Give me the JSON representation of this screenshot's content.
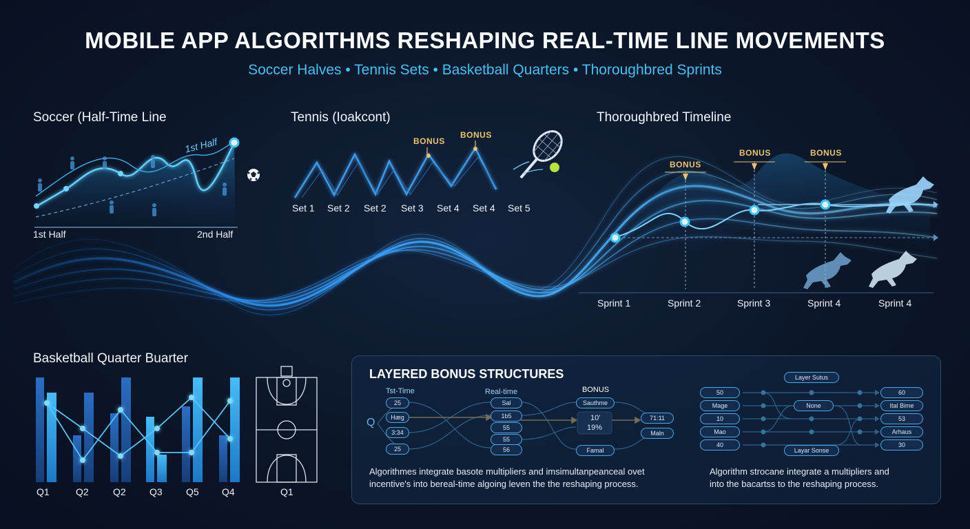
{
  "header": {
    "title": "MOBILE APP ALGORITHMS RESHAPING REAL-TIME LINE MOVEMENTS",
    "subtitle": "Soccer Halves • Tennis Sets • Basketball Quarters • Thoroughbred Sprints"
  },
  "soccer": {
    "title": "Soccer (Half-Time Line",
    "curve_label": "1st Half",
    "axis_start": "1st Half",
    "axis_end": "2nd Half",
    "icon": "soccer-ball-icon"
  },
  "tennis": {
    "title": "Tennis (Ioakcont)",
    "bonus_1": "BONUS",
    "bonus_2": "BONUS",
    "sets": [
      "Set 1",
      "Set 2",
      "Set 2",
      "Set 3",
      "Set 4",
      "Set 4",
      "Set 5"
    ],
    "icon": "tennis-racket-icon"
  },
  "thoroughbred": {
    "title": "Thoroughbred Timeline",
    "bonuses": [
      "BONUS",
      "BONUS",
      "BONUS"
    ],
    "sprints": [
      "Sprint 1",
      "Sprint 2",
      "Sprint 3",
      "Sprint 4",
      "Sprint 4"
    ],
    "icon": "horse-icon"
  },
  "basketball": {
    "title": "Basketball Quarter Buarter",
    "quarters": [
      "Q1",
      "Q2",
      "Q2",
      "Q3",
      "Q5",
      "Q4"
    ],
    "court_label": "Q1",
    "accent": "#38b6f0"
  },
  "bonus_panel": {
    "title": "LAYERED BONUS STRUCTURES",
    "left": {
      "col1_header": "Tst-Time",
      "col2_header": "Real-time",
      "col3_header": "BONUS",
      "q_label": "Q",
      "col1": [
        "25",
        "Hæg",
        "3:34",
        "25"
      ],
      "col2": [
        "Sal",
        "1b5",
        "55",
        "55",
        "56"
      ],
      "col3": [
        "Sauthme",
        "10'",
        "19%",
        "Famal"
      ],
      "col4": [
        "71:11",
        "Maln"
      ],
      "caption_1": "Algorithmes integrate basote multipliers and imsimultanpeanceal ovet",
      "caption_2": "incentive's into bereal-time algoing leven the the reshaping process."
    },
    "right": {
      "top_label": "Layer Sutus",
      "bottom_label": "Layar Sonse",
      "col1": [
        "50",
        "Mage",
        "10",
        "Mao",
        "40"
      ],
      "mid": "None",
      "col3": [
        "60",
        "Ital Bime",
        "53",
        "Arhaus",
        "30"
      ],
      "caption_1": "Algorithm strocane integrate a multipliers and",
      "caption_2": "into the bacartss to the reshaping process."
    }
  },
  "colors": {
    "background": "#0b1628",
    "accent_blue": "#3fc3f2",
    "bonus_gold": "#e9c46a"
  }
}
